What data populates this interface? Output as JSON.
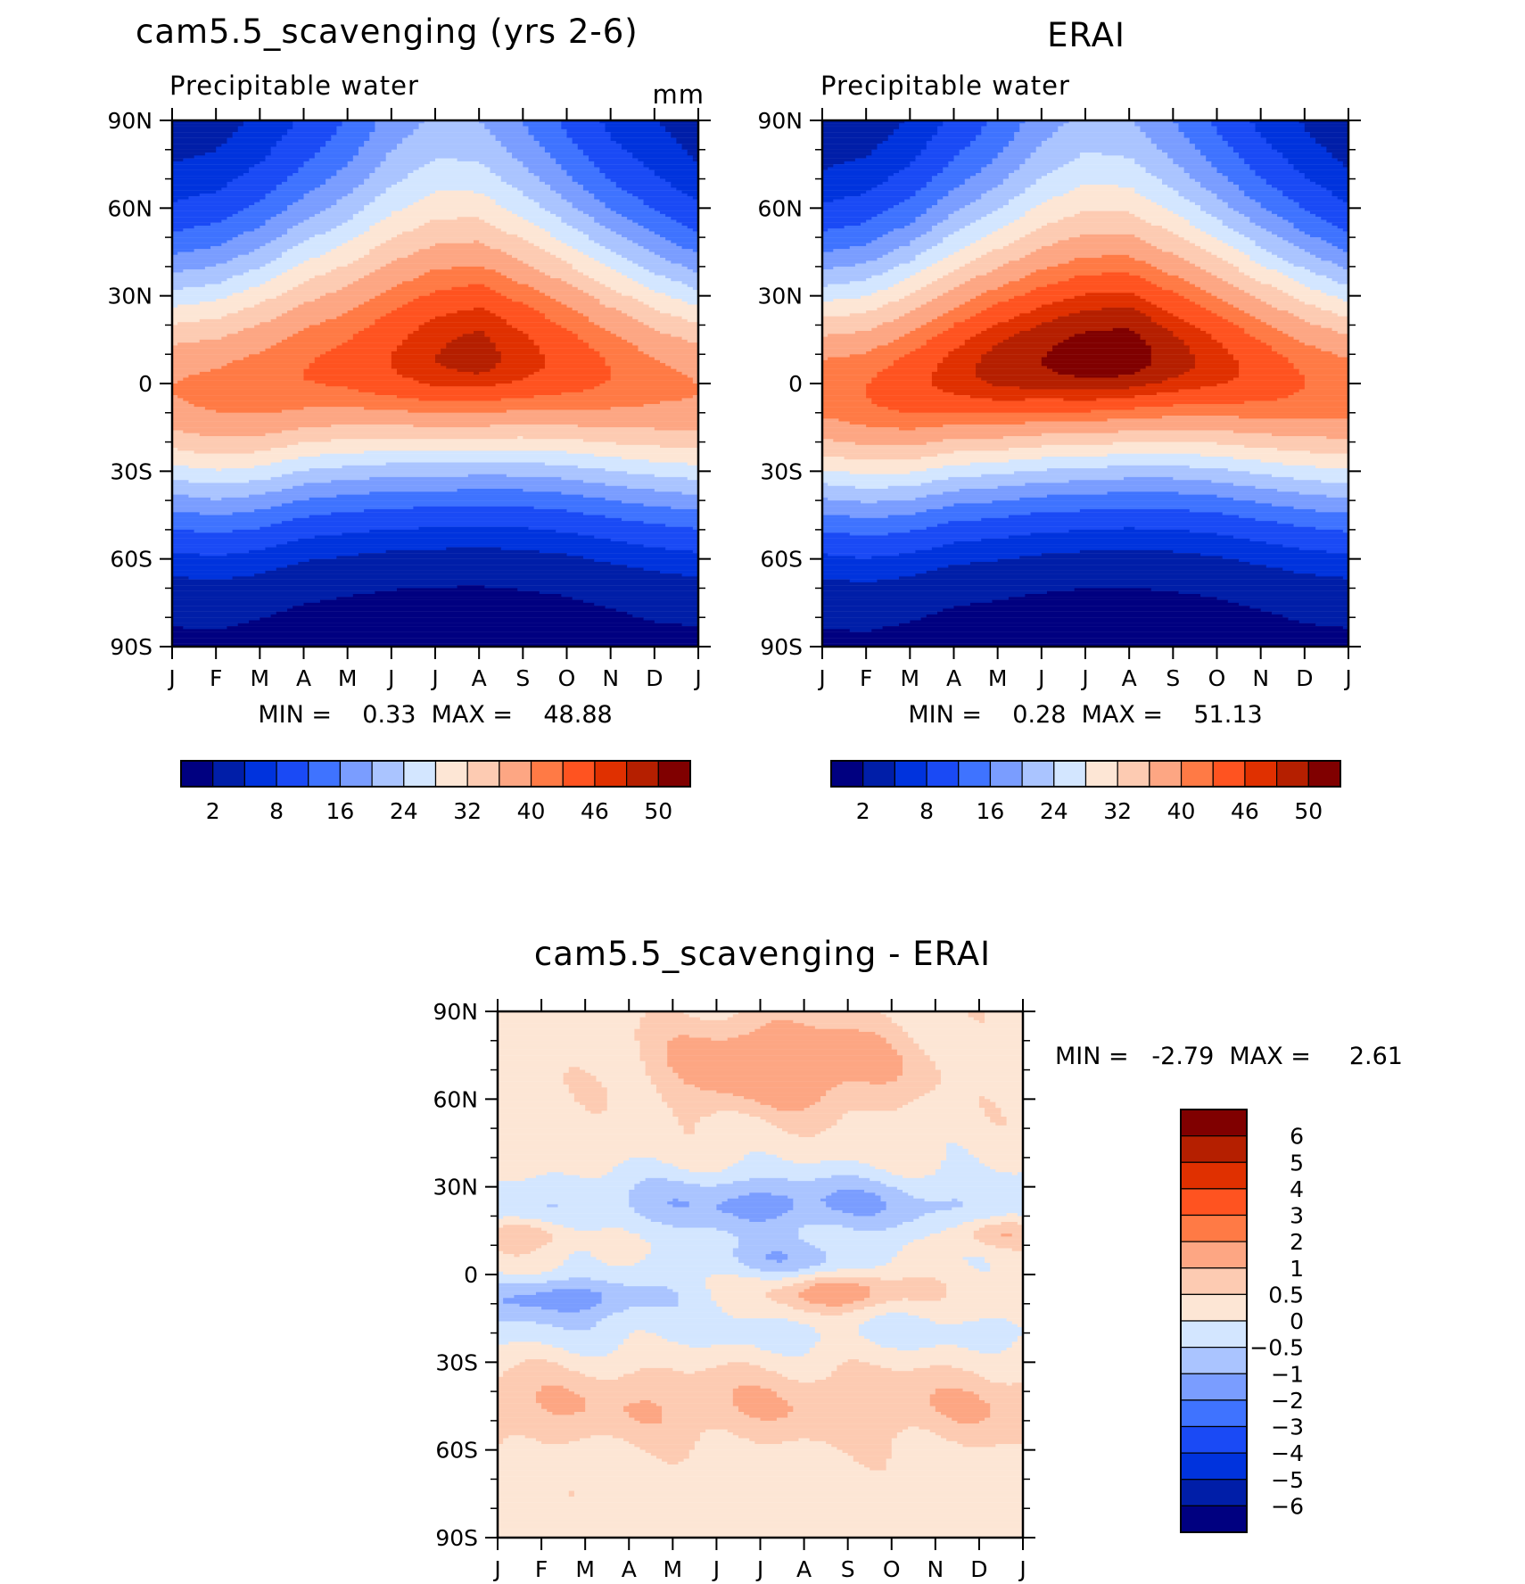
{
  "colors": {
    "absolute_levels": [
      "#000080",
      "#001ea8",
      "#0033dd",
      "#1a4af5",
      "#3f73ff",
      "#7a9dff",
      "#aac4ff",
      "#d3e6ff",
      "#fde6d5",
      "#fdcbb2",
      "#fda683",
      "#ff7a45",
      "#ff5320",
      "#e03000",
      "#b51f00",
      "#800000"
    ],
    "difference_levels": [
      "#000080",
      "#001ea8",
      "#0033dd",
      "#1a4af5",
      "#3f73ff",
      "#7a9dff",
      "#aac4ff",
      "#d3e6ff",
      "#fde6d5",
      "#fdcbb2",
      "#fda683",
      "#ff7a45",
      "#ff5320",
      "#e03000",
      "#b51f00",
      "#800000"
    ]
  },
  "chart_data": [
    {
      "type": "heatmap",
      "title": "cam5.5_scavenging (yrs 2-6)",
      "subtitle": "Precipitable water",
      "units": "mm",
      "x_tick_labels": [
        "J",
        "F",
        "M",
        "A",
        "M",
        "J",
        "J",
        "A",
        "S",
        "O",
        "N",
        "D",
        "J"
      ],
      "y_tick_labels": [
        "90N",
        "60N",
        "30N",
        "0",
        "30S",
        "60S",
        "90S"
      ],
      "latitude_range": [
        -90,
        90
      ],
      "stats_text": "MIN =    0.33  MAX =    48.88",
      "min": 0.33,
      "max": 48.88,
      "colorbar_labels": [
        "2",
        "8",
        "16",
        "24",
        "32",
        "40",
        "46",
        "50"
      ],
      "peak_latitude_by_month": [
        -2,
        -3,
        -1,
        3,
        5,
        7,
        8,
        9,
        8,
        6,
        3,
        0,
        -2
      ],
      "peak_value_by_month": [
        40,
        41,
        42,
        43,
        44,
        46,
        48,
        48.9,
        47,
        45,
        43,
        41,
        40
      ],
      "polar_north_by_month": [
        3,
        3,
        4,
        6,
        9,
        14,
        17,
        16,
        12,
        8,
        5,
        4,
        3
      ],
      "polar_south_by_month": [
        1,
        1,
        0.8,
        0.6,
        0.5,
        0.4,
        0.33,
        0.4,
        0.5,
        0.6,
        0.8,
        1,
        1
      ]
    },
    {
      "type": "heatmap",
      "title": "ERAI",
      "subtitle": "Precipitable water",
      "x_tick_labels": [
        "J",
        "F",
        "M",
        "A",
        "M",
        "J",
        "J",
        "A",
        "S",
        "O",
        "N",
        "D",
        "J"
      ],
      "y_tick_labels": [
        "90N",
        "60N",
        "30N",
        "0",
        "30S",
        "60S",
        "90S"
      ],
      "latitude_range": [
        -90,
        90
      ],
      "stats_text": "MIN =    0.28  MAX =    51.13",
      "min": 0.28,
      "max": 51.13,
      "colorbar_labels": [
        "2",
        "8",
        "16",
        "24",
        "32",
        "40",
        "46",
        "50"
      ],
      "peak_latitude_by_month": [
        -2,
        -3,
        -1,
        3,
        5,
        7,
        8,
        9,
        8,
        6,
        3,
        0,
        -2
      ],
      "peak_value_by_month": [
        42,
        43,
        45,
        47,
        49,
        50,
        51,
        51.1,
        49,
        47,
        45,
        43,
        42
      ],
      "polar_north_by_month": [
        2.5,
        2.5,
        3.5,
        6,
        9,
        14,
        17,
        16,
        12,
        8,
        5,
        3.5,
        2.5
      ],
      "polar_south_by_month": [
        1,
        1,
        0.8,
        0.6,
        0.5,
        0.4,
        0.28,
        0.4,
        0.5,
        0.6,
        0.8,
        1,
        1
      ]
    },
    {
      "type": "heatmap",
      "title": "cam5.5_scavenging - ERAI",
      "x_tick_labels": [
        "J",
        "F",
        "M",
        "A",
        "M",
        "J",
        "J",
        "A",
        "S",
        "O",
        "N",
        "D",
        "J"
      ],
      "y_tick_labels": [
        "90N",
        "60N",
        "30N",
        "0",
        "30S",
        "60S",
        "90S"
      ],
      "latitude_range": [
        -90,
        90
      ],
      "stats_text": "MIN =   -2.79  MAX =     2.61",
      "min": -2.79,
      "max": 2.61,
      "colorbar_labels": [
        "6",
        "5",
        "4",
        "3",
        "2",
        "1",
        "0.5",
        "0",
        "-0.5",
        "-1",
        "-2",
        "-3",
        "-4",
        "-5",
        "-6"
      ]
    }
  ]
}
